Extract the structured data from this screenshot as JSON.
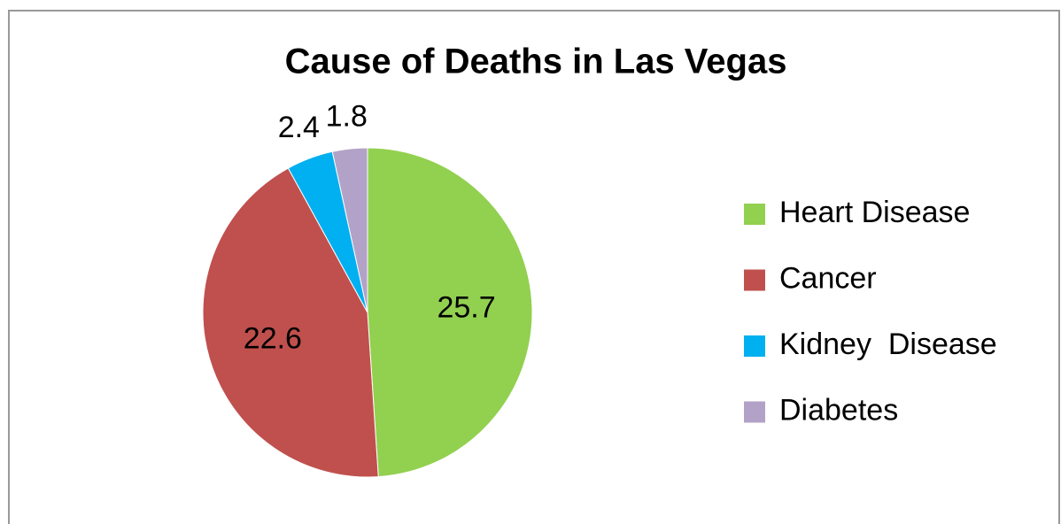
{
  "chart_data": {
    "type": "pie",
    "title": "Cause of Deaths in Las Vegas",
    "categories": [
      "Heart Disease",
      "Cancer",
      "Kidney  Disease",
      "Diabetes"
    ],
    "values": [
      25.7,
      22.6,
      2.4,
      1.8
    ],
    "colors": [
      "#92d050",
      "#c0504d",
      "#00b0f0",
      "#b3a2c7"
    ],
    "legend": "right"
  }
}
